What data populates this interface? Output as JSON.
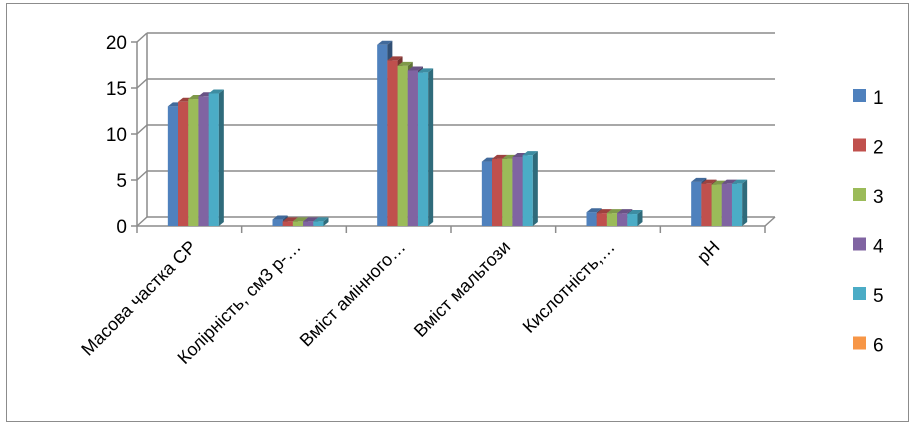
{
  "chart_data": {
    "type": "bar",
    "categories": [
      "Масова частка СР",
      "Колірність, см3 р-…",
      "Вміст амінного…",
      "Вміст мальтози",
      "Кислотність,…",
      "pH"
    ],
    "series": [
      {
        "name": "1",
        "color": "#4F81BD",
        "values": [
          13.0,
          0.7,
          19.7,
          7.0,
          1.5,
          4.8
        ]
      },
      {
        "name": "2",
        "color": "#C0504D",
        "values": [
          13.5,
          0.5,
          18.0,
          7.3,
          1.4,
          4.6
        ]
      },
      {
        "name": "3",
        "color": "#9BBB59",
        "values": [
          13.8,
          0.5,
          17.4,
          7.3,
          1.4,
          4.5
        ]
      },
      {
        "name": "4",
        "color": "#8064A2",
        "values": [
          14.1,
          0.5,
          16.9,
          7.5,
          1.4,
          4.6
        ]
      },
      {
        "name": "5",
        "color": "#4BACC6",
        "values": [
          14.4,
          0.5,
          16.7,
          7.7,
          1.3,
          4.6
        ]
      },
      {
        "name": "6",
        "color": "#F79646",
        "values": [
          0,
          0,
          0,
          0,
          0,
          0
        ]
      }
    ],
    "yticks": [
      "0",
      "5",
      "10",
      "15",
      "20"
    ],
    "ylim": [
      0,
      20
    ],
    "grid": true,
    "legend": "right"
  }
}
